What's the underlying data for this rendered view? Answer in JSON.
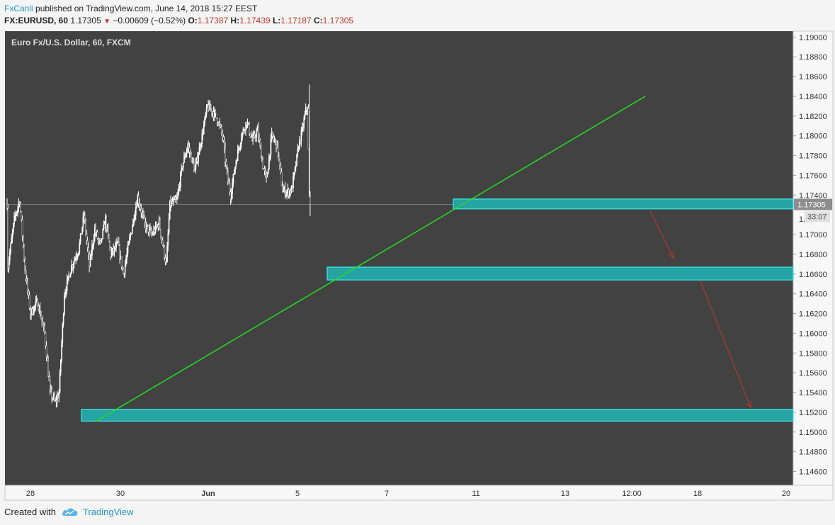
{
  "header": {
    "author": "FxCanli",
    "published_text": " published on TradingView.com, June 14, 2018 15:27 EEST",
    "symbol": "FX:EURUSD, 60",
    "last": "1.17305",
    "change": "−0.00609 (−0.52%)",
    "o_label": "O:",
    "o_value": "1.17387",
    "h_label": "H:",
    "h_value": "1.17439",
    "l_label": "L:",
    "l_value": "1.17187",
    "c_label": "C:",
    "c_value": "1.17305"
  },
  "footer": {
    "created_with": "Created with",
    "brand": "TradingView"
  },
  "colors": {
    "bg": "#424242",
    "zone_fill": "#26a3a3",
    "zone_border": "#3fe8e8",
    "trend": "#22dd22",
    "arrow": "#c0392b",
    "candle": "#ffffff",
    "price_badge": "#8d8d8d"
  },
  "chart_data": {
    "type": "candlestick",
    "title": "Euro Fx/U.S. Dollar, 60, FXCM",
    "ylim": [
      1.1446,
      1.1906
    ],
    "y_ticks": [
      "1.19000",
      "1.18800",
      "1.18600",
      "1.18400",
      "1.18200",
      "1.18000",
      "1.17800",
      "1.17600",
      "1.17400",
      "1.17305",
      "1.17000",
      "1.16800",
      "1.16600",
      "1.16400",
      "1.16200",
      "1.16000",
      "1.15800",
      "1.15600",
      "1.15400",
      "1.15200",
      "1.15000",
      "1.14800",
      "1.14600"
    ],
    "x_ticks": [
      "28",
      "30",
      "Jun",
      "5",
      "7",
      "11",
      "13",
      "12:00",
      "18",
      "20"
    ],
    "current_price": "1.17305",
    "countdown": "33:07",
    "price_path_hourly": [
      {
        "d": "2018-05-25 20:00",
        "close": 1.1731
      },
      {
        "d": "2018-05-26 00:00",
        "close": 1.1668
      },
      {
        "d": "2018-05-28 04:00",
        "close": 1.1715
      },
      {
        "d": "2018-05-28 10:00",
        "close": 1.1735
      },
      {
        "d": "2018-05-28 16:00",
        "close": 1.1665
      },
      {
        "d": "2018-05-28 22:00",
        "close": 1.162
      },
      {
        "d": "2018-05-29 06:00",
        "close": 1.1632
      },
      {
        "d": "2018-05-29 14:00",
        "close": 1.16
      },
      {
        "d": "2018-05-29 20:00",
        "close": 1.154
      },
      {
        "d": "2018-05-30 02:00",
        "close": 1.153
      },
      {
        "d": "2018-05-30 06:00",
        "close": 1.154
      },
      {
        "d": "2018-05-30 12:00",
        "close": 1.164
      },
      {
        "d": "2018-05-30 20:00",
        "close": 1.1668
      },
      {
        "d": "2018-05-31 04:00",
        "close": 1.1685
      },
      {
        "d": "2018-05-31 10:00",
        "close": 1.172
      },
      {
        "d": "2018-05-31 16:00",
        "close": 1.1668
      },
      {
        "d": "2018-05-31 22:00",
        "close": 1.1705
      },
      {
        "d": "2018-06-01 04:00",
        "close": 1.1688
      },
      {
        "d": "2018-06-01 10:00",
        "close": 1.1715
      },
      {
        "d": "2018-06-01 16:00",
        "close": 1.168
      },
      {
        "d": "2018-06-04 00:00",
        "close": 1.169
      },
      {
        "d": "2018-06-04 06:00",
        "close": 1.166
      },
      {
        "d": "2018-06-04 14:00",
        "close": 1.17
      },
      {
        "d": "2018-06-04 22:00",
        "close": 1.1738
      },
      {
        "d": "2018-06-05 06:00",
        "close": 1.171
      },
      {
        "d": "2018-06-05 14:00",
        "close": 1.17
      },
      {
        "d": "2018-06-05 22:00",
        "close": 1.1712
      },
      {
        "d": "2018-06-06 02:00",
        "close": 1.169
      },
      {
        "d": "2018-06-06 06:00",
        "close": 1.167
      },
      {
        "d": "2018-06-06 10:00",
        "close": 1.173
      },
      {
        "d": "2018-06-06 18:00",
        "close": 1.1735
      },
      {
        "d": "2018-06-07 00:00",
        "close": 1.177
      },
      {
        "d": "2018-06-07 06:00",
        "close": 1.179
      },
      {
        "d": "2018-06-07 14:00",
        "close": 1.1765
      },
      {
        "d": "2018-06-07 22:00",
        "close": 1.18
      },
      {
        "d": "2018-06-08 04:00",
        "close": 1.183
      },
      {
        "d": "2018-06-08 10:00",
        "close": 1.1825
      },
      {
        "d": "2018-06-08 16:00",
        "close": 1.1815
      },
      {
        "d": "2018-06-08 22:00",
        "close": 1.18
      },
      {
        "d": "2018-06-11 02:00",
        "close": 1.176
      },
      {
        "d": "2018-06-11 06:00",
        "close": 1.174
      },
      {
        "d": "2018-06-11 12:00",
        "close": 1.1775
      },
      {
        "d": "2018-06-11 18:00",
        "close": 1.18
      },
      {
        "d": "2018-06-12 00:00",
        "close": 1.1815
      },
      {
        "d": "2018-06-12 06:00",
        "close": 1.1795
      },
      {
        "d": "2018-06-12 12:00",
        "close": 1.1805
      },
      {
        "d": "2018-06-12 18:00",
        "close": 1.177
      },
      {
        "d": "2018-06-12 22:00",
        "close": 1.1755
      },
      {
        "d": "2018-06-13 04:00",
        "close": 1.18
      },
      {
        "d": "2018-06-13 10:00",
        "close": 1.179
      },
      {
        "d": "2018-06-13 16:00",
        "close": 1.1745
      },
      {
        "d": "2018-06-13 22:00",
        "close": 1.1743
      },
      {
        "d": "2018-06-14 02:00",
        "close": 1.1745
      },
      {
        "d": "2018-06-14 06:00",
        "close": 1.1765
      },
      {
        "d": "2018-06-14 10:00",
        "close": 1.179
      },
      {
        "d": "2018-06-14 14:00",
        "close": 1.1805
      },
      {
        "d": "2018-06-14 18:00",
        "close": 1.1825
      },
      {
        "d": "2018-06-14 20:00",
        "close": 1.183
      },
      {
        "d": "2018-06-14 22:00",
        "close": 1.174
      },
      {
        "d": "2018-06-14 23:00",
        "close": 1.17305
      }
    ],
    "support_zones": [
      {
        "from": "2018-06-11 00:00",
        "top": 1.1736,
        "bottom": 1.1726
      },
      {
        "from": "2018-06-06 01:00",
        "top": 1.1667,
        "bottom": 1.1654
      },
      {
        "from": "2018-05-29 17:00",
        "top": 1.1523,
        "bottom": 1.1511
      }
    ],
    "trendline": {
      "x1": "2018-05-29 22:00",
      "y1": 1.1511,
      "x2": "2018-06-15 00:00",
      "y2": 1.184
    },
    "arrows": [
      {
        "x1": "2018-06-15 01:00",
        "y1": 1.1724,
        "x2": "2018-06-16 04:00",
        "y2": 1.1676
      },
      {
        "x1": "2018-06-16 21:00",
        "y1": 1.1653,
        "x2": "2018-06-20 03:00",
        "y2": 1.1525
      }
    ]
  }
}
